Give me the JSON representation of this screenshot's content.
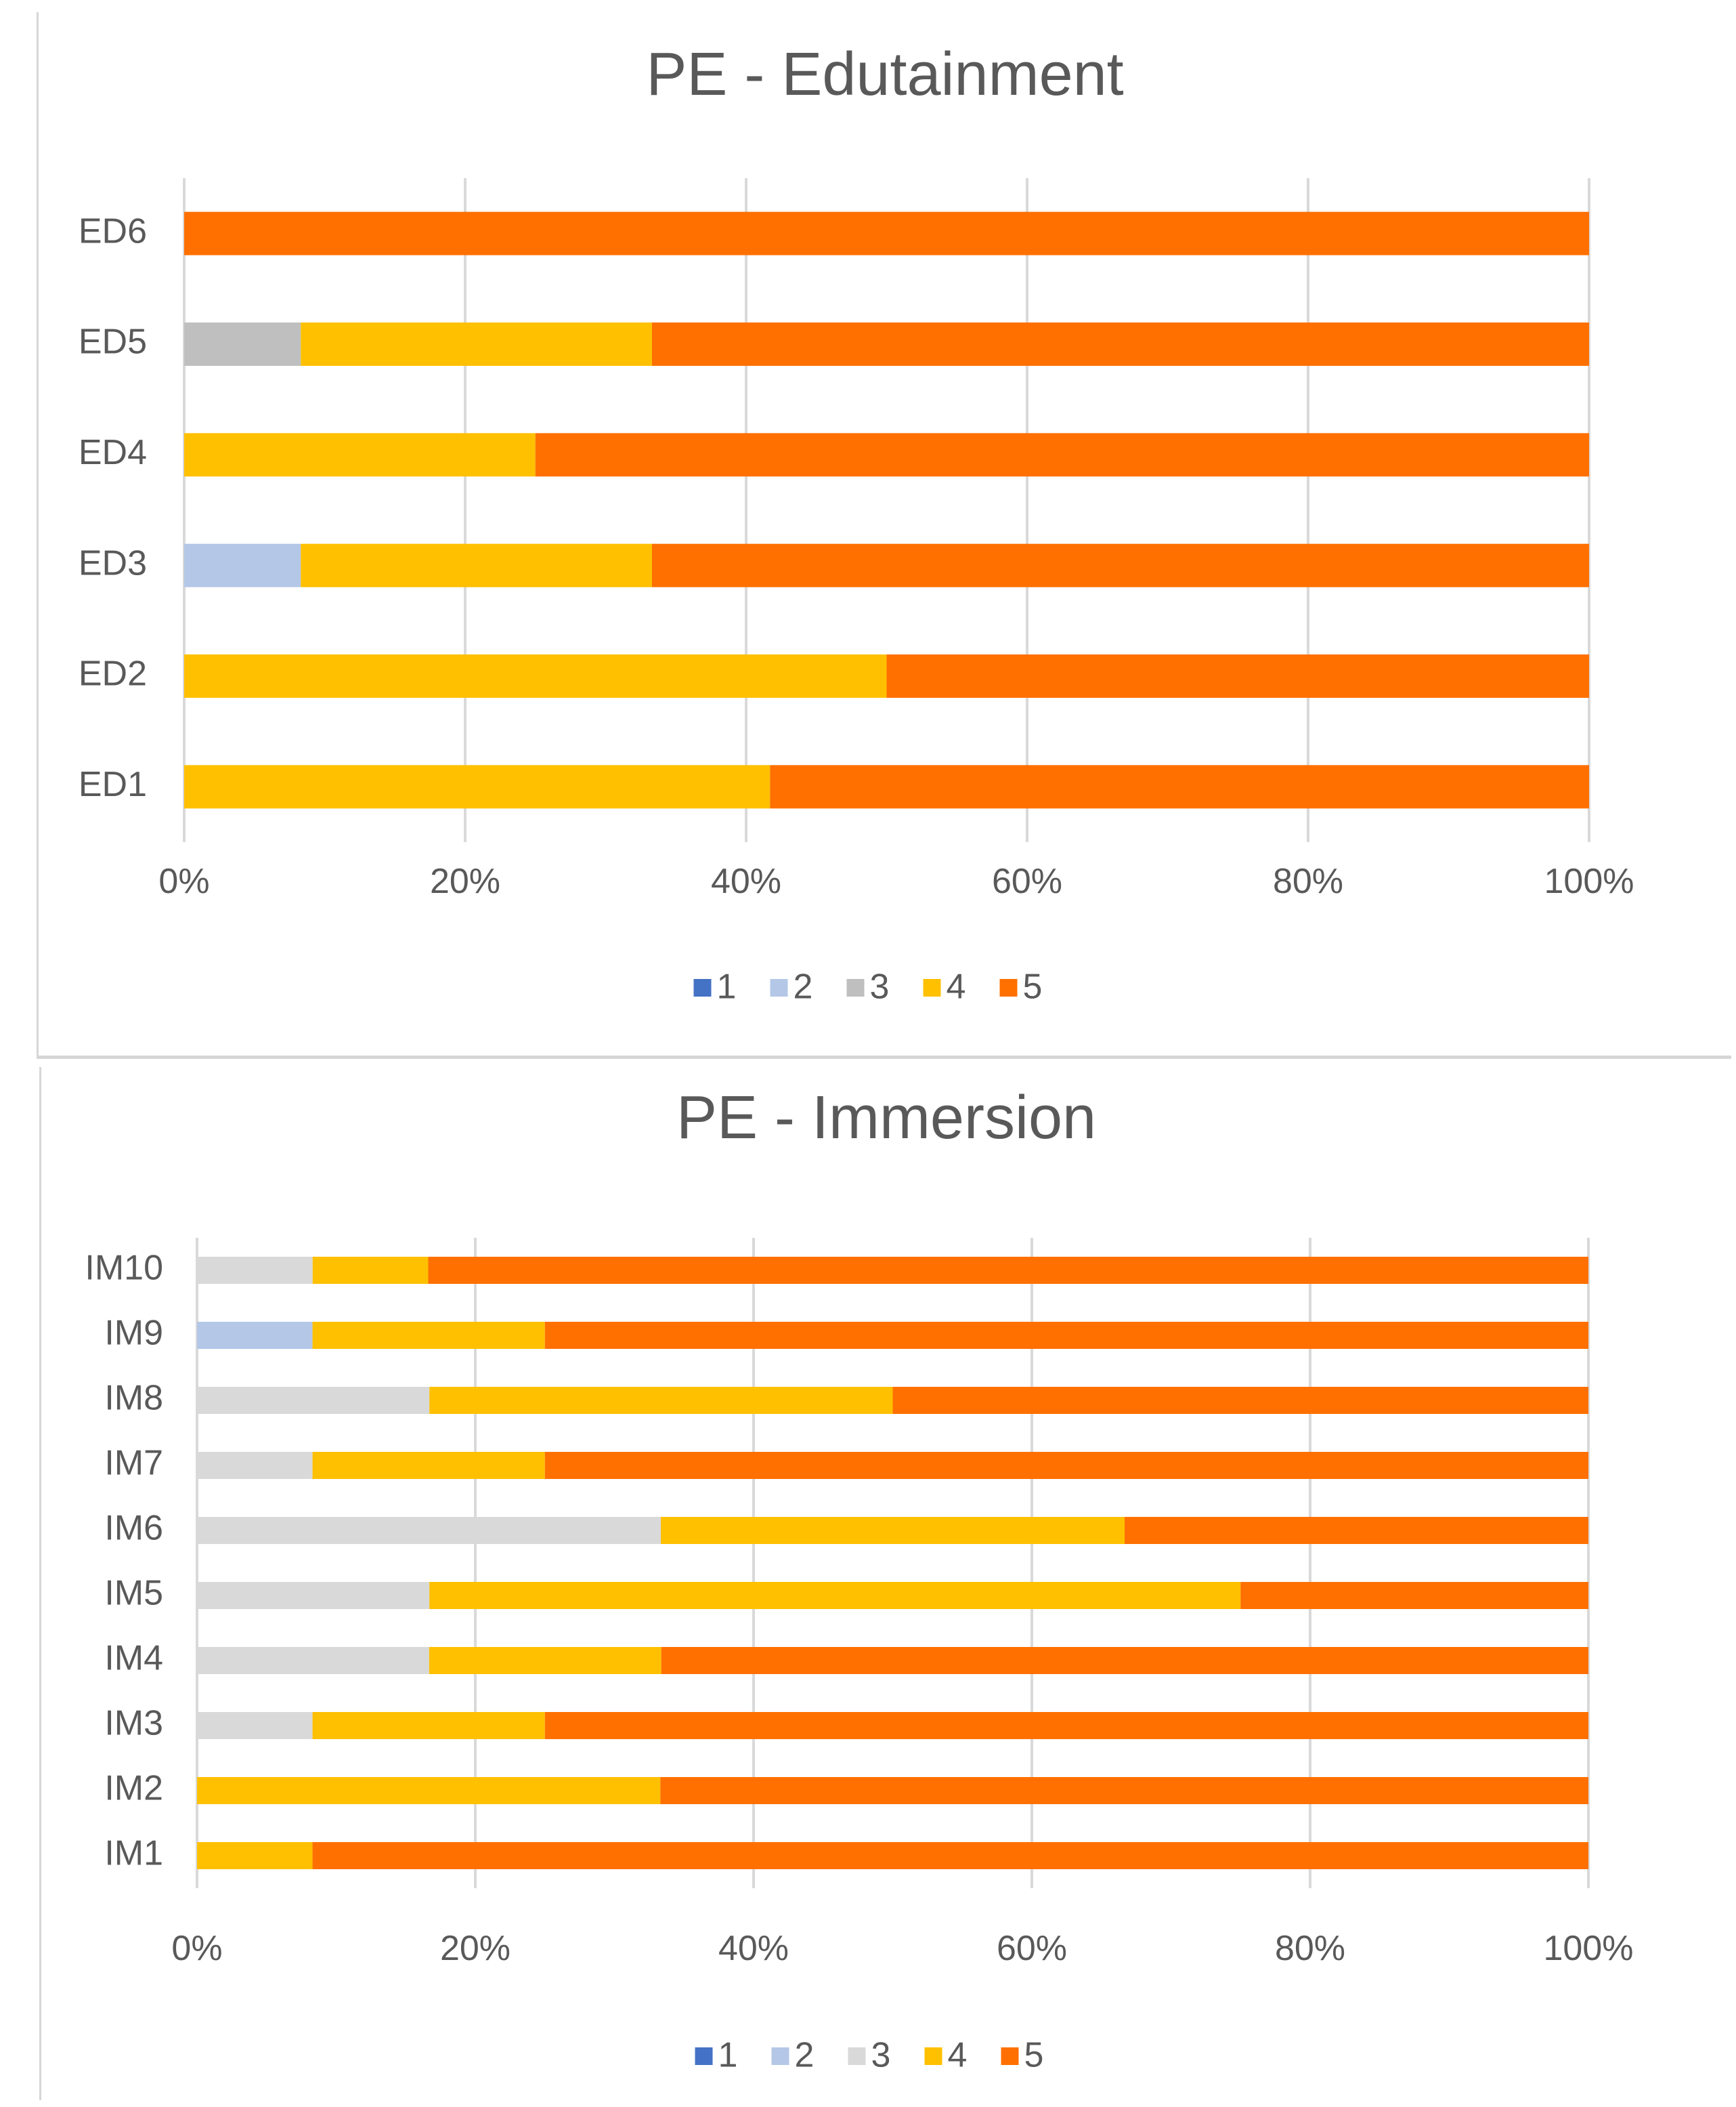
{
  "chart_data": [
    {
      "type": "bar",
      "orientation": "horizontal",
      "stacked": "percent",
      "title": "PE - Edutainment",
      "categories": [
        "ED6",
        "ED5",
        "ED4",
        "ED3",
        "ED2",
        "ED1"
      ],
      "series": [
        {
          "name": "1",
          "color": "#4472C4",
          "values": [
            0,
            0,
            0,
            0,
            0,
            0
          ]
        },
        {
          "name": "2",
          "color": "#B4C7E7",
          "values": [
            0,
            0,
            0,
            8.3,
            0,
            0
          ]
        },
        {
          "name": "3",
          "color": "#BFBFBF",
          "values": [
            0,
            8.3,
            0,
            0,
            0,
            0
          ]
        },
        {
          "name": "4",
          "color": "#FFC000",
          "values": [
            0,
            25,
            25,
            25,
            50,
            41.7
          ]
        },
        {
          "name": "5",
          "color": "#FF7000",
          "values": [
            100,
            66.7,
            75,
            66.7,
            50,
            58.3
          ]
        }
      ],
      "xticks": [
        "0%",
        "20%",
        "40%",
        "60%",
        "80%",
        "100%"
      ],
      "xlim": [
        0,
        100
      ],
      "grid": true,
      "legend": "bottom"
    },
    {
      "type": "bar",
      "orientation": "horizontal",
      "stacked": "percent",
      "title": "PE - Immersion",
      "categories": [
        "IM10",
        "IM9",
        "IM8",
        "IM7",
        "IM6",
        "IM5",
        "IM4",
        "IM3",
        "IM2",
        "IM1"
      ],
      "series": [
        {
          "name": "1",
          "color": "#4472C4",
          "values": [
            0,
            0,
            0,
            0,
            0,
            0,
            0,
            0,
            0,
            0
          ]
        },
        {
          "name": "2",
          "color": "#B4C7E7",
          "values": [
            0,
            8.3,
            0,
            0,
            0,
            0,
            0,
            0,
            0,
            0
          ]
        },
        {
          "name": "3",
          "color": "#D9D9D9",
          "values": [
            8.3,
            0,
            16.7,
            8.3,
            33.3,
            16.7,
            16.7,
            8.3,
            0,
            0
          ]
        },
        {
          "name": "4",
          "color": "#FFC000",
          "values": [
            8.3,
            16.7,
            33.3,
            16.7,
            33.3,
            58.3,
            16.7,
            16.7,
            33.3,
            8.3
          ]
        },
        {
          "name": "5",
          "color": "#FF7000",
          "values": [
            83.3,
            75,
            50,
            75,
            33.3,
            25,
            66.7,
            75,
            66.7,
            91.7
          ]
        }
      ],
      "xticks": [
        "0%",
        "20%",
        "40%",
        "60%",
        "80%",
        "100%"
      ],
      "xlim": [
        0,
        100
      ],
      "grid": true,
      "legend": "bottom"
    }
  ]
}
